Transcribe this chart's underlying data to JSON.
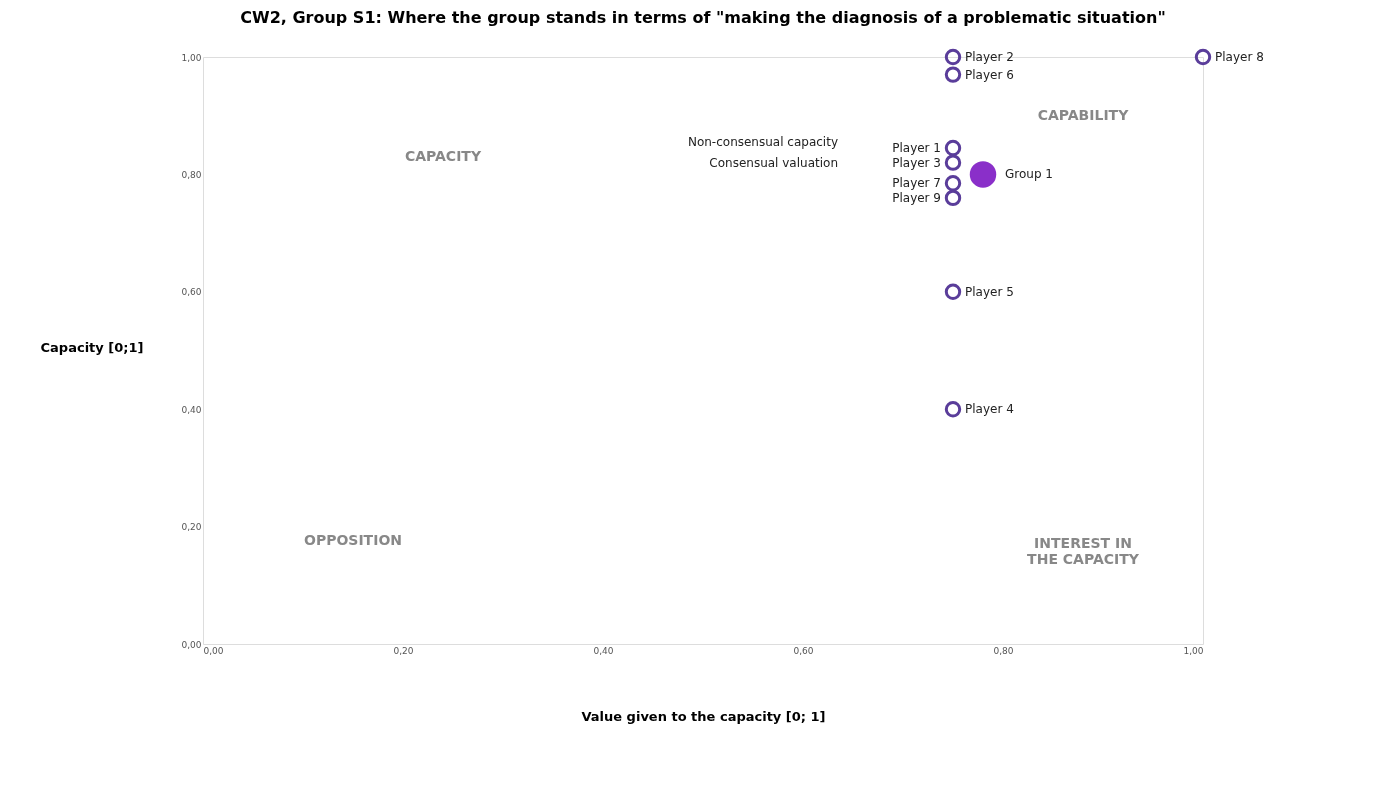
{
  "chart_data": {
    "type": "scatter",
    "title": "CW2, Group S1: Where the group stands in terms of  \"making  the diagnosis of a problematic situation\"",
    "xlabel": "Value given to the capacity [0; 1]",
    "ylabel": "Capacity [0;1]",
    "xlim": [
      0,
      1
    ],
    "ylim": [
      0,
      1
    ],
    "xticks": [
      {
        "value": 0,
        "label": "0,00"
      },
      {
        "value": 0.2,
        "label": "0,20"
      },
      {
        "value": 0.4,
        "label": "0,40"
      },
      {
        "value": 0.6,
        "label": "0,60"
      },
      {
        "value": 0.8,
        "label": "0,80"
      },
      {
        "value": 1,
        "label": "1,00"
      }
    ],
    "yticks": [
      {
        "value": 0,
        "label": "0,00"
      },
      {
        "value": 0.2,
        "label": "0,20"
      },
      {
        "value": 0.4,
        "label": "0,40"
      },
      {
        "value": 0.6,
        "label": "0,60"
      },
      {
        "value": 0.8,
        "label": "0,80"
      },
      {
        "value": 1,
        "label": "1,00"
      }
    ],
    "legend": false,
    "marker": "circle",
    "series": [
      {
        "name": "Player 2",
        "color": "#5a3d9a",
        "x": [
          0.75
        ],
        "values": [
          1.0
        ]
      },
      {
        "name": "Player 6",
        "color": "#5a3d9a",
        "x": [
          0.75
        ],
        "values": [
          0.97
        ]
      },
      {
        "name": "Player 1",
        "color": "#5a3d9a",
        "x": [
          0.75
        ],
        "values": [
          0.845
        ]
      },
      {
        "name": "Player 3",
        "color": "#5a3d9a",
        "x": [
          0.75
        ],
        "values": [
          0.82
        ]
      },
      {
        "name": "Player 7",
        "color": "#5a3d9a",
        "x": [
          0.75
        ],
        "values": [
          0.785
        ]
      },
      {
        "name": "Player 9",
        "color": "#5a3d9a",
        "x": [
          0.75
        ],
        "values": [
          0.76
        ]
      },
      {
        "name": "Player 5",
        "color": "#5a3d9a",
        "x": [
          0.75
        ],
        "values": [
          0.6
        ]
      },
      {
        "name": "Player 4",
        "color": "#5a3d9a",
        "x": [
          0.75
        ],
        "values": [
          0.4
        ]
      },
      {
        "name": "Player 8",
        "color": "#5a3d9a",
        "x": [
          1.0
        ],
        "values": [
          1.0
        ]
      },
      {
        "name": "Group 1",
        "type": "bubble",
        "color": "#8a2fc9",
        "x": [
          0.78
        ],
        "values": [
          0.8
        ],
        "sizes": [
          1
        ]
      }
    ],
    "annotations": [
      "Non-consensual capacity",
      "Consensual valuation",
      "CAPACITY",
      "CAPABILITY",
      "OPPOSITION",
      "INTEREST IN\nTHE CAPACITY"
    ]
  }
}
